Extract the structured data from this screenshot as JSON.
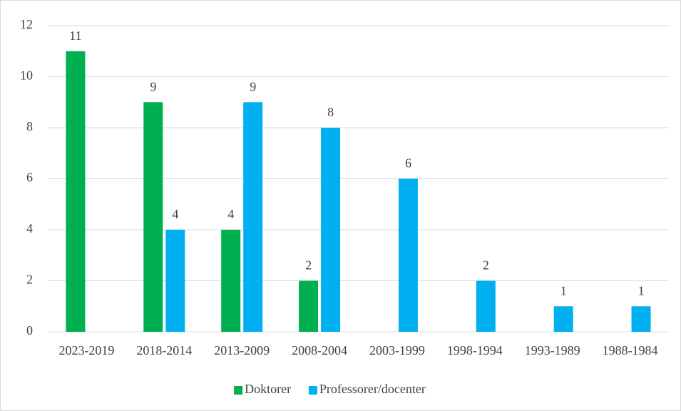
{
  "chart_data": {
    "type": "bar",
    "categories": [
      "2023-2019",
      "2018-2014",
      "2013-2009",
      "2008-2004",
      "2003-1999",
      "1998-1994",
      "1993-1989",
      "1988-1984"
    ],
    "series": [
      {
        "name": "Doktorer",
        "color": "#00b050",
        "values": [
          11,
          9,
          4,
          2,
          null,
          null,
          null,
          null
        ]
      },
      {
        "name": "Professorer/docenter",
        "color": "#00b0f0",
        "values": [
          null,
          4,
          9,
          8,
          6,
          2,
          1,
          1
        ]
      }
    ],
    "ylim": [
      0,
      12
    ],
    "yticks": [
      0,
      2,
      4,
      6,
      8,
      10,
      12
    ],
    "grid": true,
    "legend": "bottom"
  }
}
